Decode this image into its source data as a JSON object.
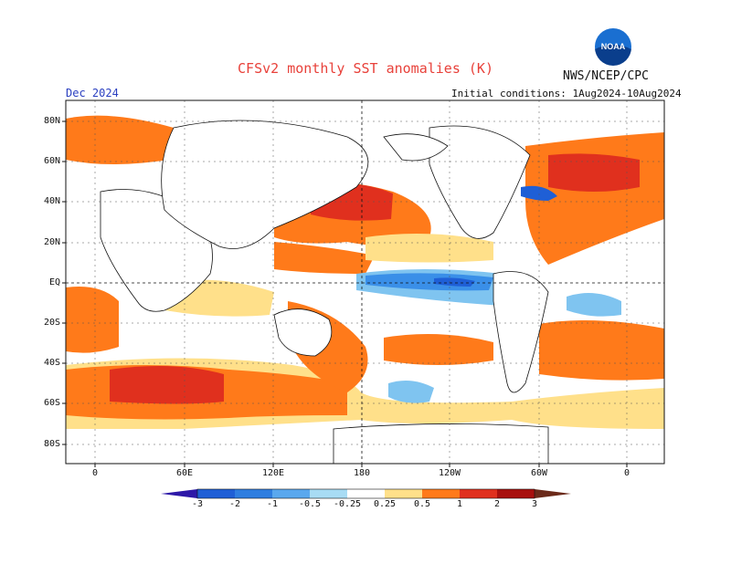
{
  "title": "CFSv2 monthly SST anomalies (K)",
  "agency": "NWS/NCEP/CPC",
  "logo_text": "NOAA",
  "forecast_month": "Dec 2024",
  "initial_conditions": "Initial conditions: 1Aug2024-10Aug2024",
  "lat_labels": [
    "80N",
    "60N",
    "40N",
    "20N",
    "EQ",
    "20S",
    "40S",
    "60S",
    "80S"
  ],
  "lon_labels": [
    "0",
    "60E",
    "120E",
    "180",
    "120W",
    "60W",
    "0"
  ],
  "colorbar": {
    "labels": [
      "-3",
      "-2",
      "-1",
      "-0.5",
      "-0.25",
      "0.25",
      "0.5",
      "1",
      "2",
      "3"
    ],
    "colors": [
      "#2d18a8",
      "#1f5fd6",
      "#3a8fe8",
      "#7fc4f0",
      "#c8ecf7",
      "#ffffff",
      "#ffe08a",
      "#ff7a1a",
      "#e0301e",
      "#a8100e",
      "#6b2a1a"
    ]
  }
}
